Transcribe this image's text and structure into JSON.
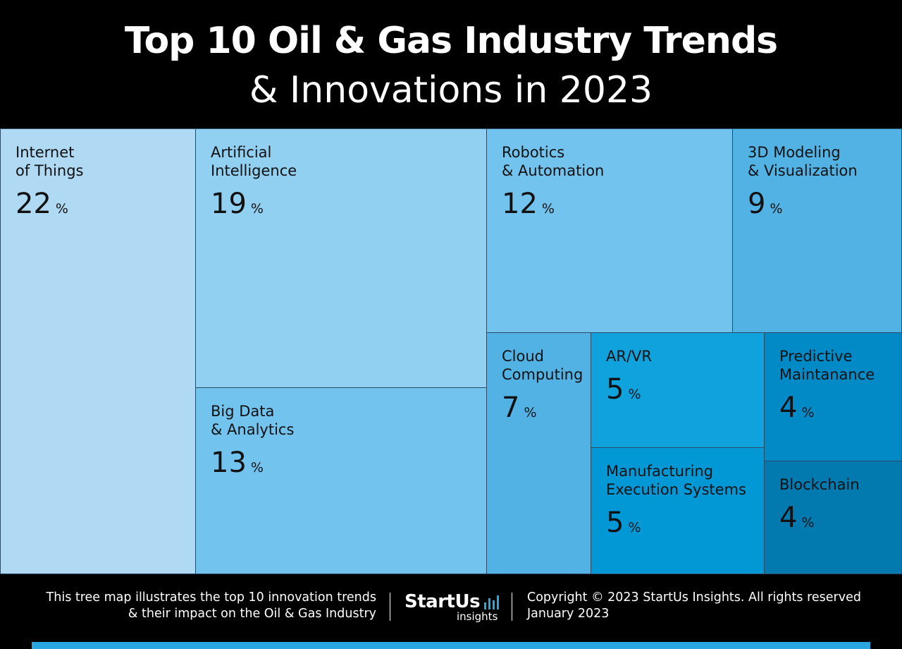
{
  "header": {
    "title_line1": "Top 10 Oil & Gas Industry Trends",
    "title_line2": "& Innovations in 2023"
  },
  "chart_data": {
    "type": "treemap",
    "title": "Top 10 Oil & Gas Industry Trends & Innovations in 2023",
    "unit": "%",
    "items": [
      {
        "name": "Internet\nof Things",
        "value": 22,
        "color": "#b0d9f4"
      },
      {
        "name": "Artificial\nIntelligence",
        "value": 19,
        "color": "#92d0f1"
      },
      {
        "name": "Big Data\n& Analytics",
        "value": 13,
        "color": "#72c3ee"
      },
      {
        "name": "Robotics\n& Automation",
        "value": 12,
        "color": "#72c3ee"
      },
      {
        "name": "3D Modeling\n& Visualization",
        "value": 9,
        "color": "#52b2e4"
      },
      {
        "name": "Cloud\nComputing",
        "value": 7,
        "color": "#52b2e4"
      },
      {
        "name": "AR/VR",
        "value": 5,
        "color": "#0fa2dd"
      },
      {
        "name": "Manufacturing\nExecution Systems",
        "value": 5,
        "color": "#0297d5"
      },
      {
        "name": "Predictive\nMaintanance",
        "value": 4,
        "color": "#028ac6"
      },
      {
        "name": "Blockchain",
        "value": 4,
        "color": "#027ab0"
      }
    ]
  },
  "footer": {
    "description": "This tree map illustrates the top 10 innovation trends\n& their impact on the Oil & Gas Industry",
    "logo_main": "StartUs",
    "logo_sub": "insights",
    "logo_icon": "bar-chart-icon",
    "copyright": "Copyright © 2023 StartUs Insights. All rights reserved\nJanuary 2023"
  }
}
